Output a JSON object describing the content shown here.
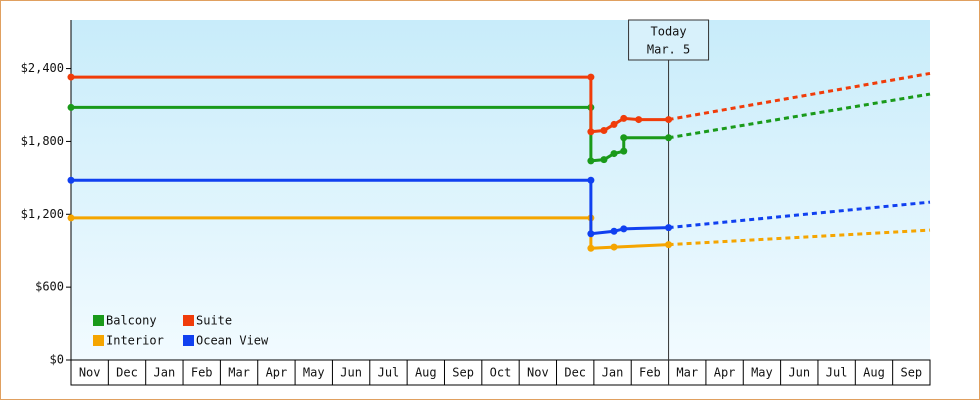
{
  "chart_data": {
    "type": "line",
    "step": true,
    "categories": [
      "Nov",
      "Dec",
      "Jan",
      "Feb",
      "Mar",
      "Apr",
      "May",
      "Jun",
      "Jul",
      "Aug",
      "Sep",
      "Oct",
      "Nov",
      "Dec",
      "Jan",
      "Feb",
      "Mar",
      "Apr",
      "May",
      "Jun",
      "Jul",
      "Aug",
      "Sep"
    ],
    "xlim": [
      0,
      23
    ],
    "ylim": [
      0,
      2800
    ],
    "yticks": [
      {
        "value": 0,
        "label": "$0"
      },
      {
        "value": 600,
        "label": "$600"
      },
      {
        "value": 1200,
        "label": "$1,200"
      },
      {
        "value": 1800,
        "label": "$1,800"
      },
      {
        "value": 2400,
        "label": "$2,400"
      }
    ],
    "annotation": {
      "lines": [
        "Today",
        "Mar. 5"
      ],
      "x": 16
    },
    "legend": "lower left",
    "series": [
      {
        "name": "Balcony",
        "color": "#1a9a1a",
        "x": [
          0,
          13.92,
          13.92,
          14.27,
          14.54,
          14.8,
          14.8,
          16
        ],
        "values": [
          2080,
          2080,
          1640,
          1650,
          1700,
          1720,
          1830,
          1830
        ],
        "forecast_x": [
          16,
          23
        ],
        "forecast_values": [
          1830,
          2190
        ]
      },
      {
        "name": "Suite",
        "color": "#f03c0a",
        "x": [
          0,
          13.92,
          13.92,
          14.27,
          14.54,
          14.8,
          15.2,
          16
        ],
        "values": [
          2330,
          2330,
          1880,
          1890,
          1940,
          1990,
          1980,
          1980
        ],
        "forecast_x": [
          16,
          23
        ],
        "forecast_values": [
          1980,
          2360
        ]
      },
      {
        "name": "Interior",
        "color": "#f5a500",
        "x": [
          0,
          13.92,
          13.92,
          14.54,
          16
        ],
        "values": [
          1170,
          1170,
          920,
          930,
          950
        ],
        "forecast_x": [
          16,
          23
        ],
        "forecast_values": [
          950,
          1070
        ]
      },
      {
        "name": "Ocean View",
        "color": "#1040f0",
        "x": [
          0,
          13.92,
          13.92,
          14.54,
          14.8,
          16
        ],
        "values": [
          1480,
          1480,
          1040,
          1060,
          1080,
          1090
        ],
        "forecast_x": [
          16,
          23
        ],
        "forecast_values": [
          1090,
          1300
        ]
      }
    ]
  }
}
